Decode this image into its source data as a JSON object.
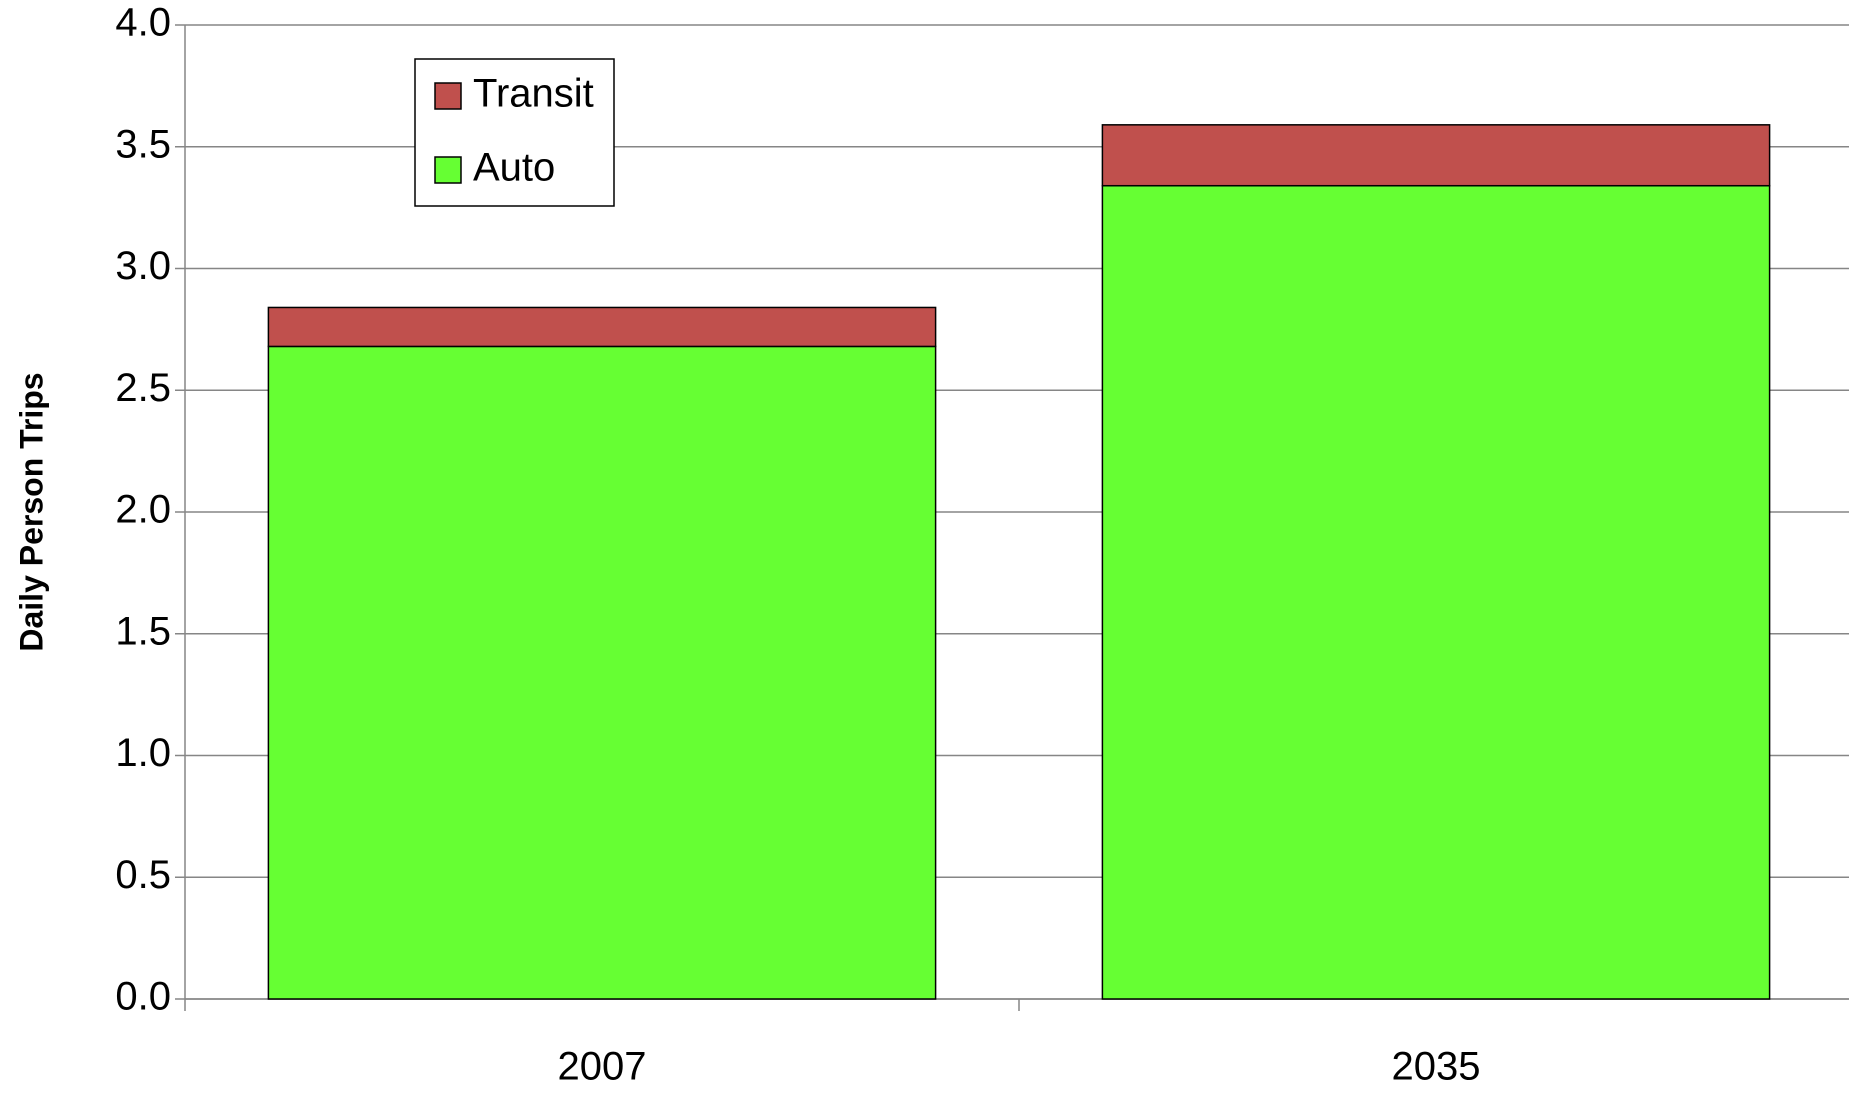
{
  "chart_data": {
    "type": "stacked_bar",
    "y_label": "Daily Person Trips",
    "categories": [
      "2007",
      "2035"
    ],
    "series": [
      {
        "name": "Auto",
        "color": "#66ff33",
        "values": [
          2.68,
          3.34
        ]
      },
      {
        "name": "Transit",
        "color": "#c0504d",
        "values": [
          0.16,
          0.25
        ]
      }
    ],
    "ylim": [
      0,
      4
    ],
    "yticks": [
      {
        "value": 0,
        "label": "0.0"
      },
      {
        "value": 0.5,
        "label": "0.5"
      },
      {
        "value": 1,
        "label": "1.0"
      },
      {
        "value": 1.5,
        "label": "1.5"
      },
      {
        "value": 2,
        "label": "2.0"
      },
      {
        "value": 2.5,
        "label": "2.5"
      },
      {
        "value": 3,
        "label": "3.0"
      },
      {
        "value": 3.5,
        "label": "3.5"
      },
      {
        "value": 4,
        "label": "4.0"
      }
    ],
    "grid": true,
    "legend": "top-left"
  }
}
